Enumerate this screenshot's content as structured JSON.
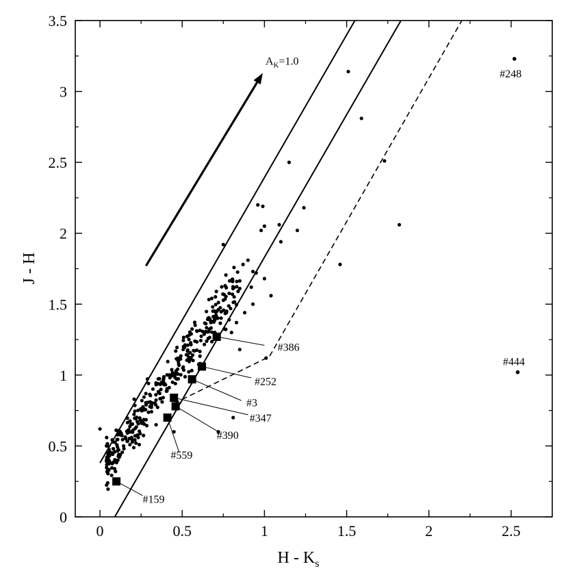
{
  "chart_data": {
    "type": "scatter",
    "xlabel": "H - K",
    "xlabel_sub": "s",
    "ylabel": "J - H",
    "xlim": [
      -0.15,
      2.75
    ],
    "ylim": [
      0,
      3.5
    ],
    "x_ticks": [
      0,
      0.5,
      1,
      1.5,
      2,
      2.5
    ],
    "x_tick_labels": [
      "0",
      "0.5",
      "1",
      "1.5",
      "2",
      "2.5"
    ],
    "y_ticks": [
      0,
      0.5,
      1,
      1.5,
      2,
      2.5,
      3,
      3.5
    ],
    "y_tick_labels": [
      "0",
      "0.5",
      "1",
      "1.5",
      "2",
      "2.5",
      "3",
      "3.5"
    ],
    "grid": false,
    "reddening_vector": {
      "label_main": "A",
      "label_sub": "K",
      "label_rest": "=1.0",
      "from": [
        0.28,
        1.77
      ],
      "to": [
        0.99,
        3.13
      ]
    },
    "lines": [
      {
        "style": "solid",
        "points": [
          [
            0.0,
            0.38
          ],
          [
            1.55,
            3.5
          ]
        ]
      },
      {
        "style": "solid",
        "points": [
          [
            0.09,
            0.0
          ],
          [
            1.83,
            3.5
          ]
        ]
      },
      {
        "style": "dashed",
        "points": [
          [
            0.45,
            0.8
          ],
          [
            1.03,
            1.13
          ],
          [
            2.2,
            3.5
          ]
        ]
      }
    ],
    "highlighted_sources": [
      {
        "name": "#386",
        "x": 0.71,
        "y": 1.27,
        "label_x": 1.08,
        "label_y": 1.17,
        "leader_x": 1.0,
        "leader_y": 1.21
      },
      {
        "name": "#252",
        "x": 0.62,
        "y": 1.06,
        "label_x": 0.94,
        "label_y": 0.93,
        "leader_x": 0.92,
        "leader_y": 0.98
      },
      {
        "name": "#3",
        "x": 0.56,
        "y": 0.97,
        "label_x": 0.89,
        "label_y": 0.78,
        "leader_x": 0.86,
        "leader_y": 0.82
      },
      {
        "name": "#347",
        "x": 0.45,
        "y": 0.84,
        "label_x": 0.91,
        "label_y": 0.67,
        "leader_x": 0.9,
        "leader_y": 0.72
      },
      {
        "name": "#390",
        "x": 0.46,
        "y": 0.78,
        "label_x": 0.71,
        "label_y": 0.55,
        "leader_x": 0.72,
        "leader_y": 0.6
      },
      {
        "name": "#559",
        "x": 0.41,
        "y": 0.7,
        "label_x": 0.43,
        "label_y": 0.41,
        "leader_x": 0.48,
        "leader_y": 0.46
      },
      {
        "name": "#159",
        "x": 0.1,
        "y": 0.25,
        "label_x": 0.26,
        "label_y": 0.1,
        "leader_x": 0.26,
        "leader_y": 0.15
      }
    ],
    "labeled_points": [
      {
        "name": "#248",
        "x": 2.52,
        "y": 3.23,
        "label_x": 2.43,
        "label_y": 3.1
      },
      {
        "name": "#444",
        "x": 2.54,
        "y": 1.02,
        "label_x": 2.45,
        "label_y": 1.07
      }
    ],
    "outlier_points": [
      [
        1.51,
        3.14
      ],
      [
        1.59,
        2.81
      ],
      [
        1.73,
        2.51
      ],
      [
        1.15,
        2.5
      ],
      [
        1.82,
        2.06
      ],
      [
        1.46,
        1.78
      ],
      [
        1.24,
        2.18
      ],
      [
        1.2,
        2.02
      ],
      [
        1.09,
        2.06
      ],
      [
        1.1,
        1.94
      ],
      [
        0.96,
        2.2
      ],
      [
        0.99,
        2.19
      ],
      [
        1.0,
        2.05
      ],
      [
        0.98,
        2.02
      ],
      [
        1.01,
        1.12
      ],
      [
        0.92,
        1.62
      ],
      [
        0.85,
        1.61
      ],
      [
        0.93,
        1.73
      ],
      [
        0.95,
        1.72
      ],
      [
        1.04,
        1.56
      ],
      [
        1.0,
        1.68
      ],
      [
        0.9,
        1.81
      ],
      [
        0.87,
        1.78
      ],
      [
        0.84,
        1.59
      ],
      [
        0.93,
        1.5
      ],
      [
        0.0,
        0.62
      ],
      [
        0.81,
        0.7
      ],
      [
        0.72,
        0.6
      ],
      [
        0.45,
        0.6
      ],
      [
        0.85,
        1.18
      ],
      [
        0.8,
        1.3
      ],
      [
        0.77,
        1.45
      ],
      [
        0.83,
        1.37
      ],
      [
        0.88,
        1.44
      ],
      [
        0.75,
        1.92
      ]
    ],
    "cloud": {
      "n": 360,
      "x_min": 0.04,
      "x_max": 0.85,
      "y_offset": 0.24,
      "slope": 1.55,
      "spread": 0.23,
      "seed": 7
    }
  }
}
